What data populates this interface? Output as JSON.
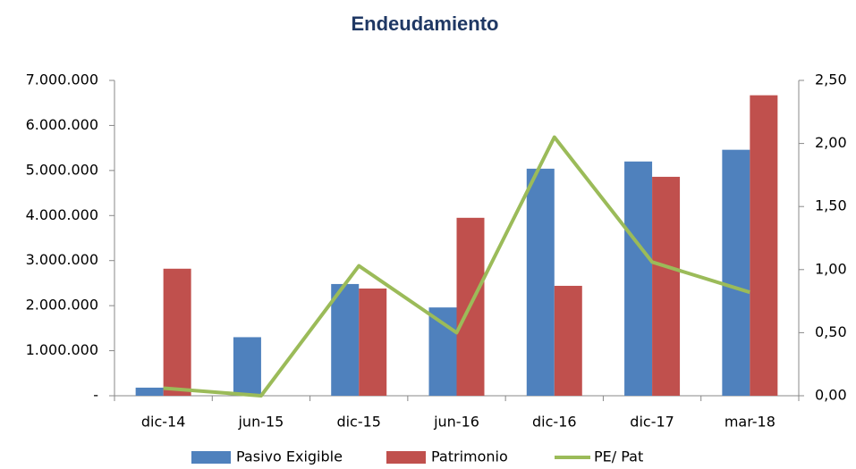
{
  "chart_data": {
    "type": "bar",
    "title": "Endeudamiento",
    "categories": [
      "dic-14",
      "jun-15",
      "dic-15",
      "jun-16",
      "dic-16",
      "dic-17",
      "mar-18"
    ],
    "series": [
      {
        "name": "Pasivo Exigible",
        "color": "#4f81bd",
        "values": [
          180000,
          1300000,
          2480000,
          1960000,
          5040000,
          5200000,
          5460000
        ]
      },
      {
        "name": "Patrimonio",
        "color": "#c0504d",
        "values": [
          2820000,
          0,
          2380000,
          3950000,
          2440000,
          4860000,
          6670000
        ]
      },
      {
        "name": "PE/ Pat",
        "type": "line",
        "axis": "y2",
        "color": "#9bbb59",
        "values": [
          0.06,
          0,
          1.03,
          0.5,
          2.05,
          1.06,
          0.82
        ]
      }
    ],
    "ylim": [
      0,
      7000000
    ],
    "yticks": [
      {
        "value": 0,
        "label": "-"
      },
      {
        "value": 1000000,
        "label": "1.000.000"
      },
      {
        "value": 2000000,
        "label": "2.000.000"
      },
      {
        "value": 3000000,
        "label": "3.000.000"
      },
      {
        "value": 4000000,
        "label": "4.000.000"
      },
      {
        "value": 5000000,
        "label": "5.000.000"
      },
      {
        "value": 6000000,
        "label": "6.000.000"
      },
      {
        "value": 7000000,
        "label": "7.000.000"
      }
    ],
    "y2lim": [
      0,
      2.5
    ],
    "y2ticks": [
      {
        "value": 0,
        "label": "0,00"
      },
      {
        "value": 0.5,
        "label": "0,50"
      },
      {
        "value": 1,
        "label": "1,00"
      },
      {
        "value": 1.5,
        "label": "1,50"
      },
      {
        "value": 2,
        "label": "2,00"
      },
      {
        "value": 2.5,
        "label": "2,50"
      }
    ],
    "grid": false,
    "legend": "bottom"
  }
}
